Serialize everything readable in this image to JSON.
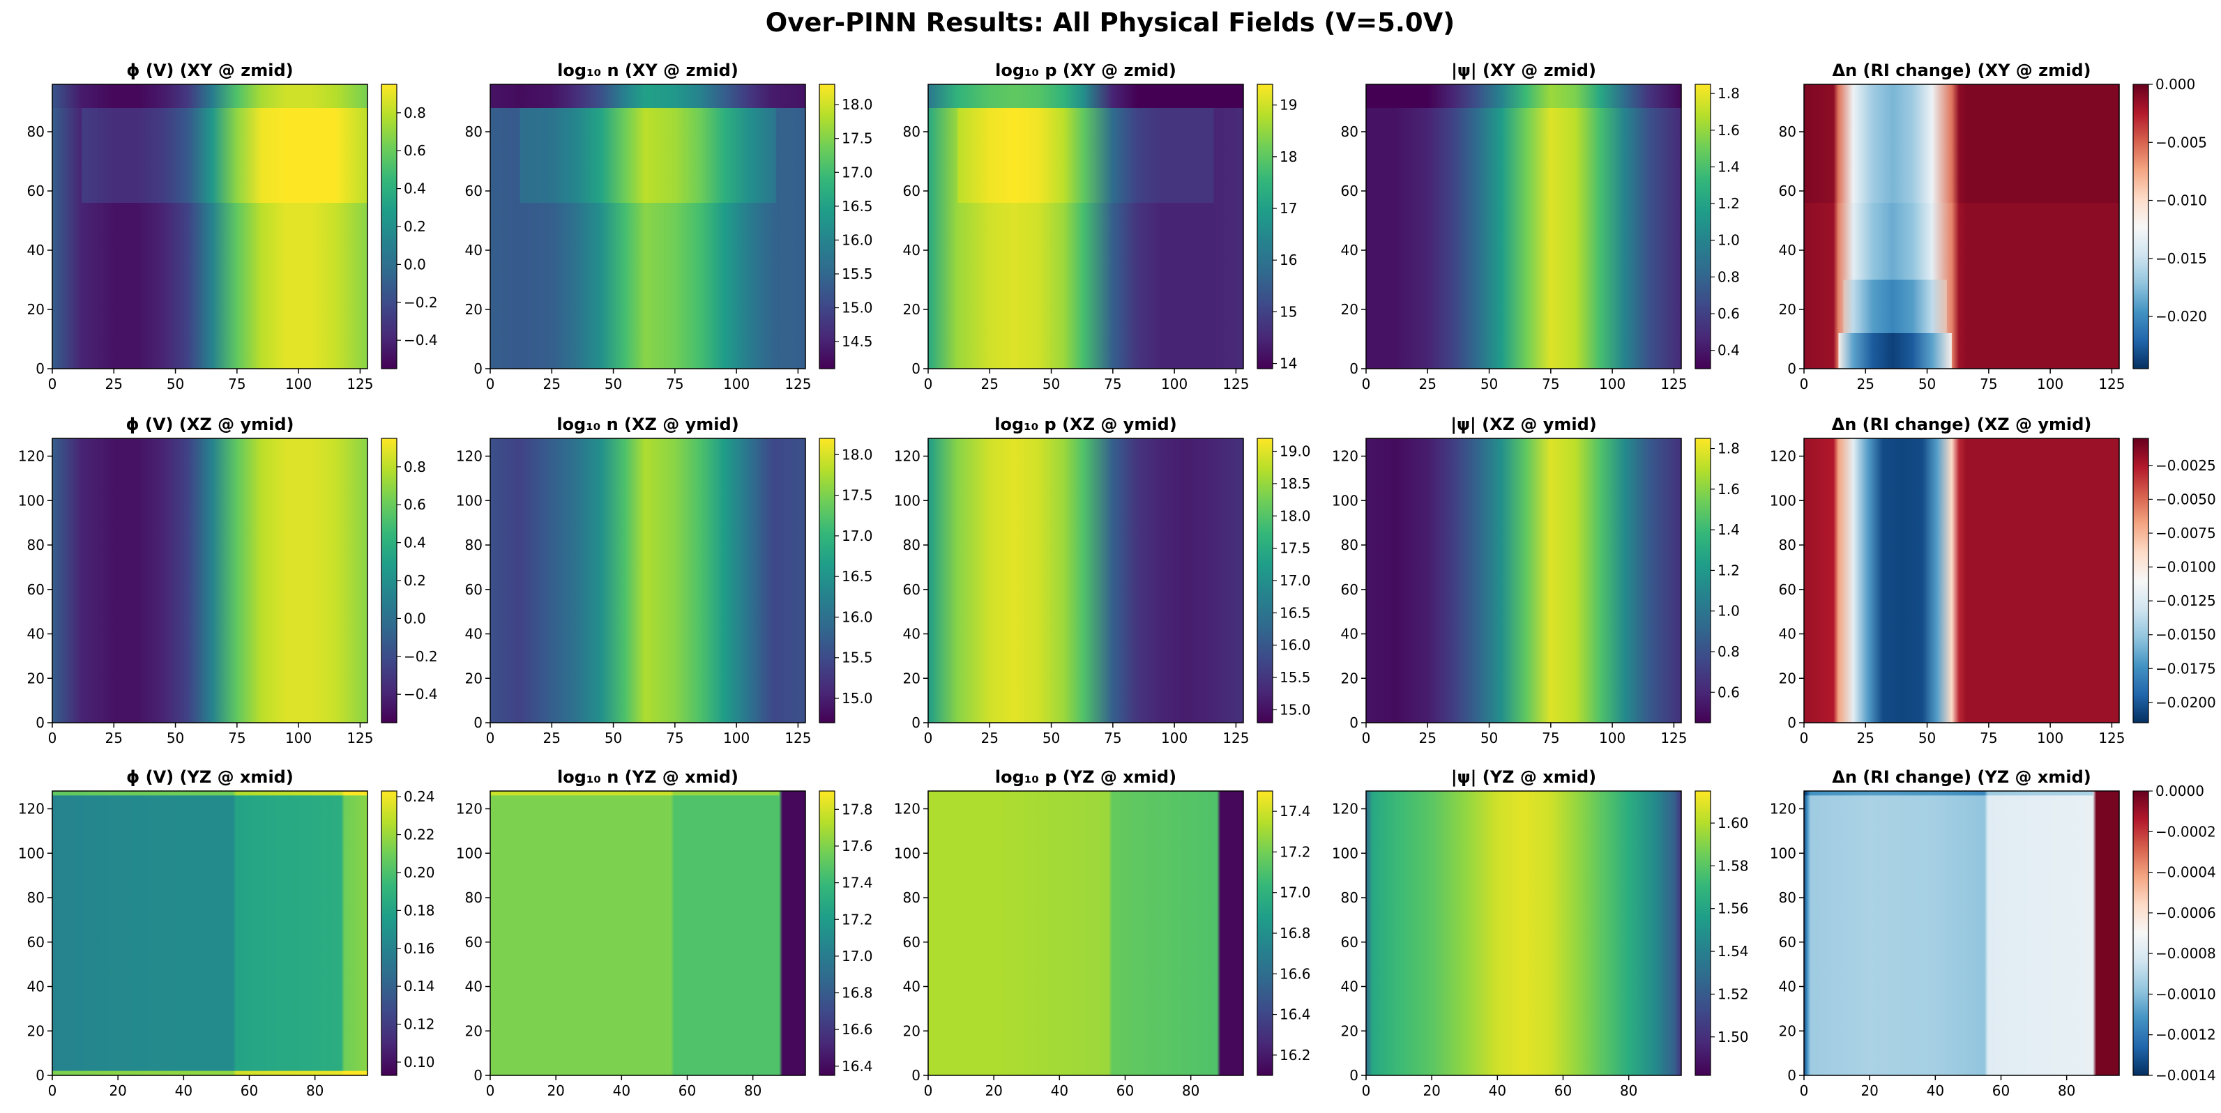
{
  "figure": {
    "title": "Over-PINN Results: All Physical Fields (V=5.0V)"
  },
  "colormaps": {
    "viridis": [
      "#440154",
      "#482878",
      "#3e4989",
      "#31688e",
      "#26828e",
      "#1f9e89",
      "#35b779",
      "#6ece58",
      "#b5de2b",
      "#fde725"
    ],
    "RdBu": [
      "#053061",
      "#2166ac",
      "#4393c3",
      "#92c5de",
      "#d1e5f0",
      "#f7f7f7",
      "#fddbc7",
      "#f4a582",
      "#d6604d",
      "#b2182b",
      "#67001f"
    ]
  },
  "chart_data": [
    {
      "id": "phi-xy",
      "type": "heatmap",
      "title": "ϕ (V)  (XY @ zmid)",
      "cmap": "viridis",
      "xlim": [
        0,
        128
      ],
      "ylim": [
        0,
        96
      ],
      "xticks": [
        0,
        25,
        50,
        75,
        100,
        125
      ],
      "yticks": [
        0,
        20,
        40,
        60,
        80
      ],
      "cbar_ticks": [
        "0.8",
        "0.6",
        "0.4",
        "0.2",
        "0.0",
        "−0.2",
        "−0.4"
      ],
      "cbar_range": [
        -0.55,
        0.95
      ],
      "x": [
        0,
        12,
        25,
        35,
        45,
        55,
        65,
        75,
        85,
        95,
        105,
        115,
        128
      ],
      "profile": [
        0.3,
        0.1,
        0.05,
        0.05,
        0.1,
        0.2,
        0.45,
        0.75,
        0.9,
        0.96,
        0.96,
        0.92,
        0.82
      ],
      "bands": [
        {
          "y0": 56,
          "y1": 88,
          "x0": 12,
          "x1": 128,
          "delta": 0.08
        },
        {
          "y0": 88,
          "y1": 96,
          "x0": 0,
          "x1": 128,
          "delta": -0.03
        }
      ]
    },
    {
      "id": "logn-xy",
      "type": "heatmap",
      "title": "log₁₀ n  (XY @ zmid)",
      "cmap": "viridis",
      "xlim": [
        0,
        128
      ],
      "ylim": [
        0,
        96
      ],
      "xticks": [
        0,
        25,
        50,
        75,
        100,
        125
      ],
      "yticks": [
        0,
        20,
        40,
        60,
        80
      ],
      "cbar_ticks": [
        "18.0",
        "17.5",
        "17.0",
        "16.5",
        "16.0",
        "15.5",
        "15.0",
        "14.5"
      ],
      "cbar_range": [
        14.1,
        18.3
      ],
      "x": [
        0,
        12,
        25,
        35,
        45,
        55,
        63,
        75,
        85,
        95,
        105,
        115,
        128
      ],
      "profile": [
        0.3,
        0.28,
        0.3,
        0.38,
        0.5,
        0.7,
        0.82,
        0.78,
        0.7,
        0.55,
        0.42,
        0.32,
        0.3
      ],
      "bands": [
        {
          "y0": 56,
          "y1": 88,
          "x0": 12,
          "x1": 116,
          "delta": 0.08
        },
        {
          "y0": 88,
          "y1": 96,
          "x0": 0,
          "x1": 128,
          "delta": -0.25
        }
      ]
    },
    {
      "id": "logp-xy",
      "type": "heatmap",
      "title": "log₁₀ p  (XY @ zmid)",
      "cmap": "viridis",
      "xlim": [
        0,
        128
      ],
      "ylim": [
        0,
        96
      ],
      "xticks": [
        0,
        25,
        50,
        75,
        100,
        125
      ],
      "yticks": [
        0,
        20,
        40,
        60,
        80
      ],
      "cbar_ticks": [
        "19",
        "18",
        "17",
        "16",
        "15",
        "14"
      ],
      "cbar_range": [
        13.9,
        19.4
      ],
      "x": [
        0,
        12,
        25,
        35,
        45,
        55,
        63,
        75,
        85,
        95,
        105,
        115,
        128
      ],
      "profile": [
        0.6,
        0.85,
        0.93,
        0.95,
        0.93,
        0.85,
        0.7,
        0.3,
        0.15,
        0.1,
        0.1,
        0.1,
        0.12
      ],
      "bands": [
        {
          "y0": 56,
          "y1": 88,
          "x0": 12,
          "x1": 116,
          "delta": 0.05
        },
        {
          "y0": 88,
          "y1": 96,
          "x0": 0,
          "x1": 128,
          "delta": -0.2
        }
      ]
    },
    {
      "id": "psi-xy",
      "type": "heatmap",
      "title": "|ψ|  (XY @ zmid)",
      "cmap": "viridis",
      "xlim": [
        0,
        128
      ],
      "ylim": [
        0,
        96
      ],
      "xticks": [
        0,
        25,
        50,
        75,
        100,
        125
      ],
      "yticks": [
        0,
        20,
        40,
        60,
        80
      ],
      "cbar_ticks": [
        "1.8",
        "1.6",
        "1.4",
        "1.2",
        "1.0",
        "0.8",
        "0.6",
        "0.4"
      ],
      "cbar_range": [
        0.3,
        1.85
      ],
      "x": [
        0,
        12,
        25,
        35,
        45,
        55,
        65,
        75,
        85,
        95,
        105,
        115,
        128
      ],
      "profile": [
        0.05,
        0.05,
        0.1,
        0.2,
        0.35,
        0.55,
        0.78,
        0.95,
        0.9,
        0.7,
        0.45,
        0.25,
        0.12
      ],
      "bands": [
        {
          "y0": 88,
          "y1": 96,
          "x0": 0,
          "x1": 128,
          "delta": -0.1
        }
      ]
    },
    {
      "id": "dn-xy",
      "type": "heatmap",
      "title": "Δn (RI change)  (XY @ zmid)",
      "cmap": "RdBu",
      "xlim": [
        0,
        128
      ],
      "ylim": [
        0,
        96
      ],
      "xticks": [
        0,
        25,
        50,
        75,
        100,
        125
      ],
      "yticks": [
        0,
        20,
        40,
        60,
        80
      ],
      "cbar_ticks": [
        "0.000",
        "−0.005",
        "−0.010",
        "−0.015",
        "−0.020"
      ],
      "cbar_range": [
        -0.0245,
        0.0
      ],
      "x": [
        0,
        12,
        14,
        20,
        28,
        36,
        44,
        52,
        60,
        63,
        66,
        128
      ],
      "profile": [
        0.95,
        0.93,
        0.75,
        0.45,
        0.3,
        0.25,
        0.3,
        0.45,
        0.75,
        0.93,
        0.95,
        0.95
      ],
      "bands": [
        {
          "y0": 0,
          "y1": 12,
          "x0": 14,
          "x1": 60,
          "delta": -0.22
        },
        {
          "y0": 12,
          "y1": 30,
          "x0": 16,
          "x1": 58,
          "delta": -0.08
        },
        {
          "y0": 56,
          "y1": 96,
          "x0": 0,
          "x1": 128,
          "delta": 0.02
        }
      ]
    },
    {
      "id": "phi-xz",
      "type": "heatmap",
      "title": "ϕ (V)  (XZ @ ymid)",
      "cmap": "viridis",
      "xlim": [
        0,
        128
      ],
      "ylim": [
        0,
        128
      ],
      "xticks": [
        0,
        25,
        50,
        75,
        100,
        125
      ],
      "yticks": [
        0,
        20,
        40,
        60,
        80,
        100,
        120
      ],
      "cbar_ticks": [
        "0.8",
        "0.6",
        "0.4",
        "0.2",
        "0.0",
        "−0.2",
        "−0.4"
      ],
      "cbar_range": [
        -0.55,
        0.95
      ],
      "x": [
        0,
        12,
        25,
        35,
        45,
        55,
        65,
        75,
        85,
        95,
        105,
        115,
        128
      ],
      "profile": [
        0.3,
        0.1,
        0.05,
        0.05,
        0.1,
        0.2,
        0.45,
        0.75,
        0.9,
        0.95,
        0.95,
        0.92,
        0.82
      ],
      "bands": []
    },
    {
      "id": "logn-xz",
      "type": "heatmap",
      "title": "log₁₀ n  (XZ @ ymid)",
      "cmap": "viridis",
      "xlim": [
        0,
        128
      ],
      "ylim": [
        0,
        128
      ],
      "xticks": [
        0,
        25,
        50,
        75,
        100,
        125
      ],
      "yticks": [
        0,
        20,
        40,
        60,
        80,
        100,
        120
      ],
      "cbar_ticks": [
        "18.0",
        "17.5",
        "17.0",
        "16.5",
        "16.0",
        "15.5",
        "15.0"
      ],
      "cbar_range": [
        14.7,
        18.2
      ],
      "x": [
        0,
        12,
        25,
        35,
        45,
        55,
        63,
        75,
        85,
        95,
        105,
        115,
        128
      ],
      "profile": [
        0.25,
        0.2,
        0.3,
        0.38,
        0.5,
        0.72,
        0.88,
        0.82,
        0.72,
        0.55,
        0.38,
        0.22,
        0.25
      ],
      "bands": []
    },
    {
      "id": "logp-xz",
      "type": "heatmap",
      "title": "log₁₀ p  (XZ @ ymid)",
      "cmap": "viridis",
      "xlim": [
        0,
        128
      ],
      "ylim": [
        0,
        128
      ],
      "xticks": [
        0,
        25,
        50,
        75,
        100,
        125
      ],
      "yticks": [
        0,
        20,
        40,
        60,
        80,
        100,
        120
      ],
      "cbar_ticks": [
        "19.0",
        "18.5",
        "18.0",
        "17.5",
        "17.0",
        "16.5",
        "16.0",
        "15.5",
        "15.0"
      ],
      "cbar_range": [
        14.8,
        19.2
      ],
      "x": [
        0,
        12,
        25,
        35,
        45,
        55,
        63,
        75,
        85,
        95,
        105,
        115,
        128
      ],
      "profile": [
        0.55,
        0.82,
        0.93,
        0.96,
        0.93,
        0.85,
        0.72,
        0.3,
        0.15,
        0.1,
        0.08,
        0.1,
        0.14
      ],
      "bands": []
    },
    {
      "id": "psi-xz",
      "type": "heatmap",
      "title": "|ψ|  (XZ @ ymid)",
      "cmap": "viridis",
      "xlim": [
        0,
        128
      ],
      "ylim": [
        0,
        128
      ],
      "xticks": [
        0,
        25,
        50,
        75,
        100,
        125
      ],
      "yticks": [
        0,
        20,
        40,
        60,
        80,
        100,
        120
      ],
      "cbar_ticks": [
        "1.8",
        "1.6",
        "1.4",
        "1.2",
        "1.0",
        "0.8",
        "0.6"
      ],
      "cbar_range": [
        0.45,
        1.85
      ],
      "x": [
        0,
        12,
        25,
        35,
        45,
        55,
        65,
        75,
        85,
        95,
        105,
        115,
        128
      ],
      "profile": [
        0.05,
        0.03,
        0.08,
        0.18,
        0.32,
        0.5,
        0.75,
        0.95,
        0.9,
        0.72,
        0.48,
        0.28,
        0.14
      ],
      "bands": []
    },
    {
      "id": "dn-xz",
      "type": "heatmap",
      "title": "Δn (RI change)  (XZ @ ymid)",
      "cmap": "RdBu",
      "xlim": [
        0,
        128
      ],
      "ylim": [
        0,
        128
      ],
      "xticks": [
        0,
        25,
        50,
        75,
        100,
        125
      ],
      "yticks": [
        0,
        20,
        40,
        60,
        80,
        100,
        120
      ],
      "cbar_ticks": [
        "−0.0025",
        "−0.0050",
        "−0.0075",
        "−0.0100",
        "−0.0125",
        "−0.0150",
        "−0.0175",
        "−0.0200"
      ],
      "cbar_range": [
        -0.0215,
        -0.0005
      ],
      "x": [
        0,
        12,
        14,
        20,
        26,
        32,
        40,
        48,
        54,
        60,
        63,
        66,
        128
      ],
      "profile": [
        0.93,
        0.9,
        0.7,
        0.45,
        0.22,
        0.05,
        0.04,
        0.05,
        0.22,
        0.6,
        0.88,
        0.93,
        0.93
      ],
      "bands": []
    },
    {
      "id": "phi-yz",
      "type": "heatmap",
      "title": "ϕ (V)  (YZ @ xmid)",
      "cmap": "viridis",
      "xlim": [
        0,
        96
      ],
      "ylim": [
        0,
        128
      ],
      "xticks": [
        0,
        20,
        40,
        60,
        80
      ],
      "yticks": [
        0,
        20,
        40,
        60,
        80,
        100,
        120
      ],
      "cbar_ticks": [
        "0.24",
        "0.22",
        "0.20",
        "0.18",
        "0.16",
        "0.14",
        "0.12",
        "0.10"
      ],
      "cbar_range": [
        0.093,
        0.243
      ],
      "x": [
        0,
        20,
        40,
        55,
        56,
        70,
        88,
        89,
        96
      ],
      "profile": [
        0.45,
        0.47,
        0.48,
        0.48,
        0.58,
        0.6,
        0.62,
        0.78,
        0.82
      ],
      "bands": [
        {
          "y0": 126,
          "y1": 128,
          "x0": 0,
          "x1": 96,
          "delta": 0.3
        },
        {
          "y0": 0,
          "y1": 2,
          "x0": 0,
          "x1": 96,
          "delta": 0.35
        }
      ]
    },
    {
      "id": "logn-yz",
      "type": "heatmap",
      "title": "log₁₀ n  (YZ @ xmid)",
      "cmap": "viridis",
      "xlim": [
        0,
        96
      ],
      "ylim": [
        0,
        128
      ],
      "xticks": [
        0,
        20,
        40,
        60,
        80
      ],
      "yticks": [
        0,
        20,
        40,
        60,
        80,
        100,
        120
      ],
      "cbar_ticks": [
        "17.8",
        "17.6",
        "17.4",
        "17.2",
        "17.0",
        "16.8",
        "16.6",
        "16.4"
      ],
      "cbar_range": [
        16.35,
        17.9
      ],
      "x": [
        0,
        20,
        40,
        55,
        56,
        70,
        88,
        89,
        96
      ],
      "profile": [
        0.8,
        0.8,
        0.8,
        0.8,
        0.72,
        0.72,
        0.72,
        0.02,
        0.02
      ],
      "bands": [
        {
          "y0": 126,
          "y1": 128,
          "x0": 0,
          "x1": 88,
          "delta": 0.12
        }
      ]
    },
    {
      "id": "logp-yz",
      "type": "heatmap",
      "title": "log₁₀ p  (YZ @ xmid)",
      "cmap": "viridis",
      "xlim": [
        0,
        96
      ],
      "ylim": [
        0,
        128
      ],
      "xticks": [
        0,
        20,
        40,
        60,
        80
      ],
      "yticks": [
        0,
        20,
        40,
        60,
        80,
        100,
        120
      ],
      "cbar_ticks": [
        "17.4",
        "17.2",
        "17.0",
        "16.8",
        "16.6",
        "16.4",
        "16.2"
      ],
      "cbar_range": [
        16.1,
        17.5
      ],
      "x": [
        0,
        20,
        40,
        55,
        56,
        70,
        88,
        89,
        96
      ],
      "profile": [
        0.88,
        0.88,
        0.86,
        0.85,
        0.76,
        0.74,
        0.72,
        0.02,
        0.02
      ],
      "bands": []
    },
    {
      "id": "psi-yz",
      "type": "heatmap",
      "title": "|ψ|  (YZ @ xmid)",
      "cmap": "viridis",
      "xlim": [
        0,
        96
      ],
      "ylim": [
        0,
        128
      ],
      "xticks": [
        0,
        20,
        40,
        60,
        80
      ],
      "yticks": [
        0,
        20,
        40,
        60,
        80,
        100,
        120
      ],
      "cbar_ticks": [
        "1.60",
        "1.58",
        "1.56",
        "1.54",
        "1.52",
        "1.50"
      ],
      "cbar_range": [
        1.482,
        1.615
      ],
      "x": [
        0,
        2,
        10,
        20,
        30,
        40,
        48,
        56,
        64,
        72,
        80,
        88,
        94,
        96
      ],
      "profile": [
        0.35,
        0.6,
        0.68,
        0.74,
        0.83,
        0.93,
        0.96,
        0.93,
        0.84,
        0.74,
        0.62,
        0.48,
        0.3,
        0.15
      ],
      "bands": []
    },
    {
      "id": "dn-yz",
      "type": "heatmap",
      "title": "Δn (RI change)  (YZ @ xmid)",
      "cmap": "RdBu",
      "xlim": [
        0,
        96
      ],
      "ylim": [
        0,
        128
      ],
      "xticks": [
        0,
        20,
        40,
        60,
        80
      ],
      "yticks": [
        0,
        20,
        40,
        60,
        80,
        100,
        120
      ],
      "cbar_ticks": [
        "0.0000",
        "−0.0002",
        "−0.0004",
        "−0.0006",
        "−0.0008",
        "−0.0010",
        "−0.0012",
        "−0.0014"
      ],
      "cbar_range": [
        -0.0014,
        0.0
      ],
      "x": [
        0,
        1,
        2,
        20,
        40,
        55,
        56,
        70,
        88,
        89,
        96
      ],
      "profile": [
        0.05,
        0.2,
        0.32,
        0.34,
        0.33,
        0.3,
        0.44,
        0.45,
        0.46,
        0.98,
        0.98
      ],
      "bands": [
        {
          "y0": 126,
          "y1": 128,
          "x0": 0,
          "x1": 88,
          "delta": -0.12
        }
      ]
    }
  ]
}
